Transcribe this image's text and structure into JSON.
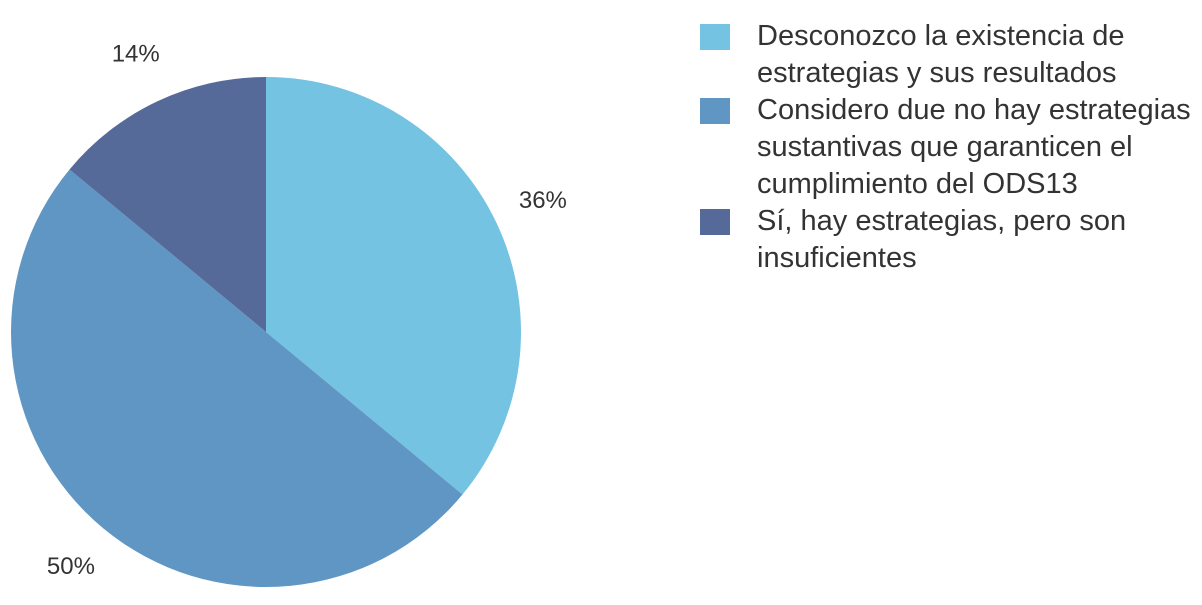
{
  "chart_data": {
    "type": "pie",
    "categories": [
      "Desconozco la existencia de estrategias y sus resultados",
      "Considero due no hay estrategias sustantivas que garanticen el cumplimiento del ODS13",
      "Sí, hay estrategias, pero son insuficientes"
    ],
    "values": [
      36,
      50,
      14
    ],
    "value_labels": [
      "36%",
      "50%",
      "14%"
    ],
    "colors": [
      "#74c3e2",
      "#6096c4",
      "#566a99"
    ],
    "legend": "right"
  }
}
